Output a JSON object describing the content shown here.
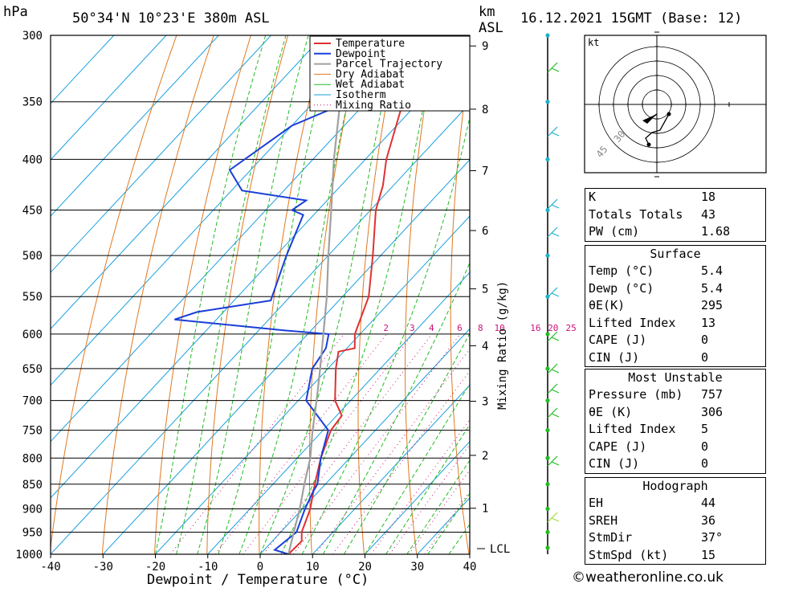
{
  "header": {
    "pressure_unit": "hPa",
    "location": "50°34'N  10°23'E  380m  ASL",
    "km_label": "km",
    "asl_label": "ASL",
    "datetime": "16.12.2021  15GMT  (Base: 12)"
  },
  "chart_data": {
    "type": "line",
    "title": "50°34'N  10°23'E  380m  ASL",
    "xlabel": "Dewpoint / Temperature (°C)",
    "ylabel": "hPa",
    "xlim": [
      -40,
      40
    ],
    "ylim": [
      1000,
      300
    ],
    "yscale": "log",
    "skew": "skew-T",
    "pressure_ticks": [
      300,
      350,
      400,
      450,
      500,
      550,
      600,
      650,
      700,
      750,
      800,
      850,
      900,
      950,
      1000
    ],
    "temp_ticks": [
      -40,
      -30,
      -20,
      -10,
      0,
      10,
      20,
      30,
      40
    ],
    "km_ticks": [
      1,
      2,
      3,
      4,
      5,
      6,
      7,
      8,
      9
    ],
    "lcl_label": "LCL",
    "mixing_ratio_axis_label": "Mixing Ratio (g/kg)",
    "mixing_ratio_labels": [
      "2",
      "3",
      "4",
      "6",
      "8",
      "10",
      "16",
      "20",
      "25"
    ],
    "legend": [
      "Temperature",
      "Dewpoint",
      "Parcel Trajectory",
      "Dry Adiabat",
      "Wet Adiabat",
      "Isotherm",
      "Mixing Ratio"
    ],
    "colors": {
      "temperature": "#e03030",
      "dewpoint": "#1a3ed8",
      "parcel": "#a0a0a0",
      "dry_adiabat": "#e07820",
      "wet_adiabat": "#22bb22",
      "isotherm": "#1a9fe0",
      "mixing_ratio": "#cc1177"
    },
    "series": [
      {
        "name": "Temperature",
        "points": [
          [
            1000,
            5.4
          ],
          [
            970,
            5.6
          ],
          [
            950,
            4.0
          ],
          [
            900,
            1.5
          ],
          [
            850,
            -2.0
          ],
          [
            800,
            -5.5
          ],
          [
            750,
            -8.5
          ],
          [
            725,
            -9.0
          ],
          [
            700,
            -13.0
          ],
          [
            650,
            -18.5
          ],
          [
            625,
            -21.0
          ],
          [
            620,
            -18.5
          ],
          [
            600,
            -21.0
          ],
          [
            550,
            -25.0
          ],
          [
            500,
            -31.5
          ],
          [
            450,
            -39.0
          ],
          [
            425,
            -42.0
          ],
          [
            400,
            -46.0
          ],
          [
            350,
            -53.0
          ],
          [
            300,
            -61.0
          ]
        ]
      },
      {
        "name": "Dewpoint",
        "points": [
          [
            1000,
            5.4
          ],
          [
            990,
            2.0
          ],
          [
            950,
            3.0
          ],
          [
            900,
            0.5
          ],
          [
            865,
            -1.0
          ],
          [
            850,
            -1.5
          ],
          [
            800,
            -5.5
          ],
          [
            750,
            -9.0
          ],
          [
            700,
            -18.5
          ],
          [
            650,
            -23.0
          ],
          [
            620,
            -24.0
          ],
          [
            600,
            -26.0
          ],
          [
            595,
            -35.0
          ],
          [
            580,
            -58.0
          ],
          [
            570,
            -55.0
          ],
          [
            555,
            -43.0
          ],
          [
            500,
            -48.0
          ],
          [
            455,
            -52.0
          ],
          [
            450,
            -55.0
          ],
          [
            440,
            -54.0
          ],
          [
            430,
            -68.0
          ],
          [
            410,
            -74.0
          ],
          [
            370,
            -70.0
          ],
          [
            340,
            -60.0
          ],
          [
            300,
            -66.0
          ]
        ]
      },
      {
        "name": "Parcel Trajectory",
        "points": [
          [
            1000,
            5.4
          ],
          [
            950,
            2.5
          ],
          [
            900,
            -0.5
          ],
          [
            850,
            -4.0
          ],
          [
            800,
            -7.5
          ],
          [
            750,
            -12.0
          ],
          [
            700,
            -16.5
          ],
          [
            650,
            -21.5
          ],
          [
            600,
            -27.0
          ],
          [
            550,
            -33.0
          ],
          [
            500,
            -40.0
          ],
          [
            450,
            -47.5
          ],
          [
            400,
            -56.0
          ],
          [
            350,
            -65.0
          ],
          [
            300,
            -74.0
          ]
        ]
      }
    ]
  },
  "indices": [
    [
      "K",
      "18"
    ],
    [
      "Totals Totals",
      "43"
    ],
    [
      "PW (cm)",
      "1.68"
    ]
  ],
  "surface": {
    "title": "Surface",
    "rows": [
      [
        "Temp (°C)",
        "5.4"
      ],
      [
        "Dewp (°C)",
        "5.4"
      ],
      [
        "θE(K)",
        "295"
      ],
      [
        "Lifted Index",
        "13"
      ],
      [
        "CAPE (J)",
        "0"
      ],
      [
        "CIN (J)",
        "0"
      ]
    ]
  },
  "most_unstable": {
    "title": "Most Unstable",
    "rows": [
      [
        "Pressure (mb)",
        "757"
      ],
      [
        "θE (K)",
        "306"
      ],
      [
        "Lifted Index",
        "5"
      ],
      [
        "CAPE (J)",
        "0"
      ],
      [
        "CIN (J)",
        "0"
      ]
    ]
  },
  "hodograph": {
    "title": "Hodograph",
    "unit": "kt",
    "ring_labels": [
      "30",
      "45"
    ],
    "rows": [
      [
        "EH",
        "44"
      ],
      [
        "SREH",
        "36"
      ],
      [
        "StmDir",
        "37°"
      ],
      [
        "StmSpd (kt)",
        "15"
      ]
    ]
  },
  "credit": "©weatheronline.co.uk"
}
